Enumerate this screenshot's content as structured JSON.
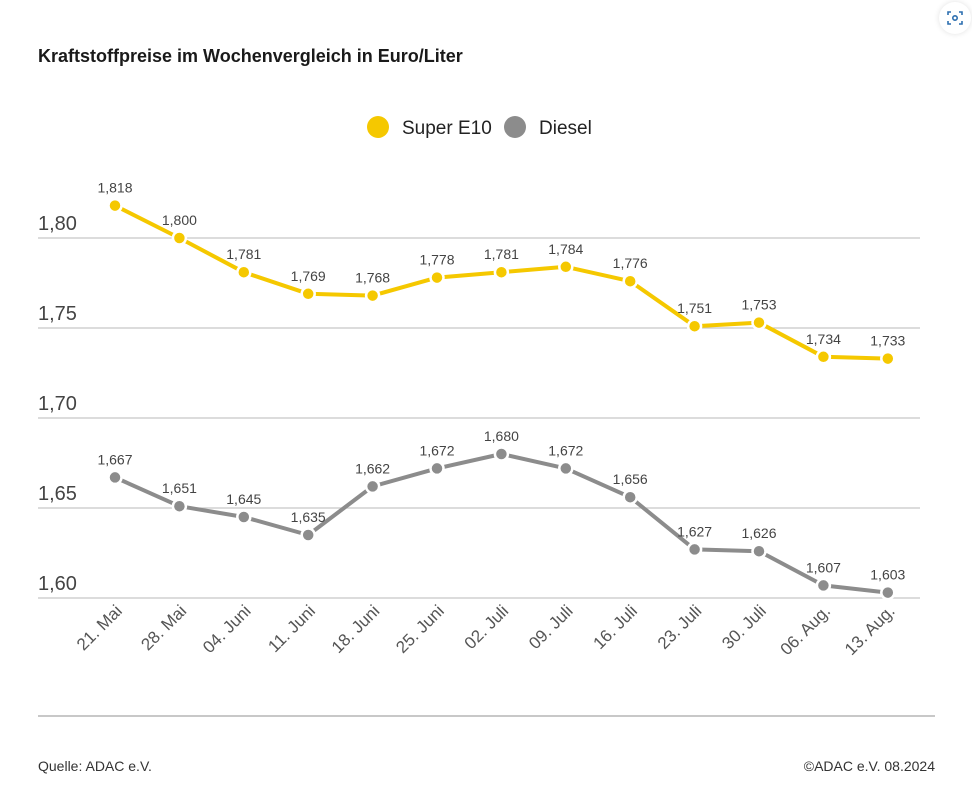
{
  "footer": {
    "source": "Quelle: ADAC e.V.",
    "copyright": "©ADAC e.V. 08.2024"
  },
  "icons": {
    "top_right": "camera-scan-icon"
  },
  "chart_data": {
    "type": "line",
    "title": "Kraftstoffpreise im Wochenvergleich in Euro/Liter",
    "categories": [
      "21. Mai",
      "28. Mai",
      "04. Juni",
      "11. Juni",
      "18. Juni",
      "25. Juni",
      "02. Juli",
      "09. Juli",
      "16. Juli",
      "23. Juli",
      "30. Juli",
      "06. Aug.",
      "13. Aug."
    ],
    "series": [
      {
        "name": "Super E10",
        "color": "#f5c800",
        "values": [
          1.818,
          1.8,
          1.781,
          1.769,
          1.768,
          1.778,
          1.781,
          1.784,
          1.776,
          1.751,
          1.753,
          1.734,
          1.733
        ],
        "labels": [
          "1,818",
          "1,800",
          "1,781",
          "1,769",
          "1,768",
          "1,778",
          "1,781",
          "1,784",
          "1,776",
          "1,751",
          "1,753",
          "1,734",
          "1,733"
        ]
      },
      {
        "name": "Diesel",
        "color": "#8c8c8c",
        "values": [
          1.667,
          1.651,
          1.645,
          1.635,
          1.662,
          1.672,
          1.68,
          1.672,
          1.656,
          1.627,
          1.626,
          1.607,
          1.603
        ],
        "labels": [
          "1,667",
          "1,651",
          "1,645",
          "1,635",
          "1,662",
          "1,672",
          "1,680",
          "1,672",
          "1,656",
          "1,627",
          "1,626",
          "1,607",
          "1,603"
        ]
      }
    ],
    "yticks": [
      1.6,
      1.65,
      1.7,
      1.75,
      1.8
    ],
    "ytick_labels": [
      "1,60",
      "1,65",
      "1,70",
      "1,75",
      "1,80"
    ],
    "ylim": [
      1.6,
      1.8
    ],
    "grid": true,
    "legend": "top-center"
  }
}
